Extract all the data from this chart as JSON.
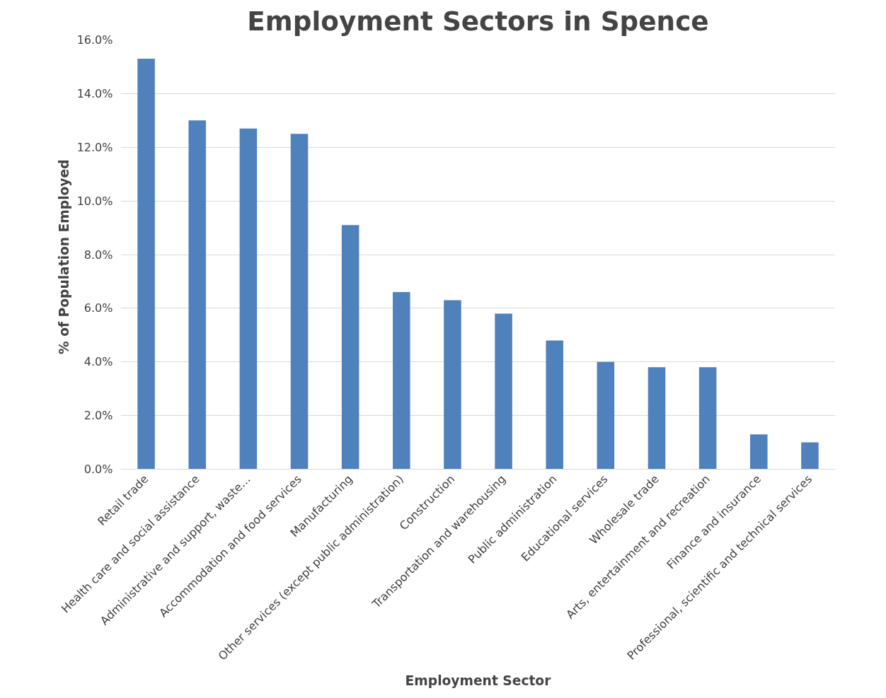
{
  "chart_data": {
    "type": "bar",
    "title": "Employment Sectors in Spence",
    "xlabel": "Employment Sector",
    "ylabel": "% of Population  Employed",
    "categories": [
      "Retail trade",
      "Health care and social assistance",
      "Administrative and support, waste…",
      "Accommodation and food services",
      "Manufacturing",
      "Other services (except public administration)",
      "Construction",
      "Transportation and warehousing",
      "Public administration",
      "Educational services",
      "Wholesale trade",
      "Arts, entertainment and recreation",
      "Finance and insurance",
      "Professional, scientific and technical services"
    ],
    "values": [
      15.3,
      13.0,
      12.7,
      12.5,
      9.1,
      6.6,
      6.3,
      5.8,
      4.8,
      4.0,
      3.8,
      3.8,
      1.3,
      1.0
    ],
    "color": "#4f81bd",
    "ylim": [
      0,
      16
    ],
    "yticks": [
      {
        "value": 0,
        "label": "0.0%"
      },
      {
        "value": 2,
        "label": "2.0%"
      },
      {
        "value": 4,
        "label": "4.0%"
      },
      {
        "value": 6,
        "label": "6.0%"
      },
      {
        "value": 8,
        "label": "8.0%"
      },
      {
        "value": 10,
        "label": "10.0%"
      },
      {
        "value": 12,
        "label": "12.0%"
      },
      {
        "value": 14,
        "label": "14.0%"
      },
      {
        "value": 16,
        "label": "16.0%"
      }
    ],
    "grid": "y"
  }
}
